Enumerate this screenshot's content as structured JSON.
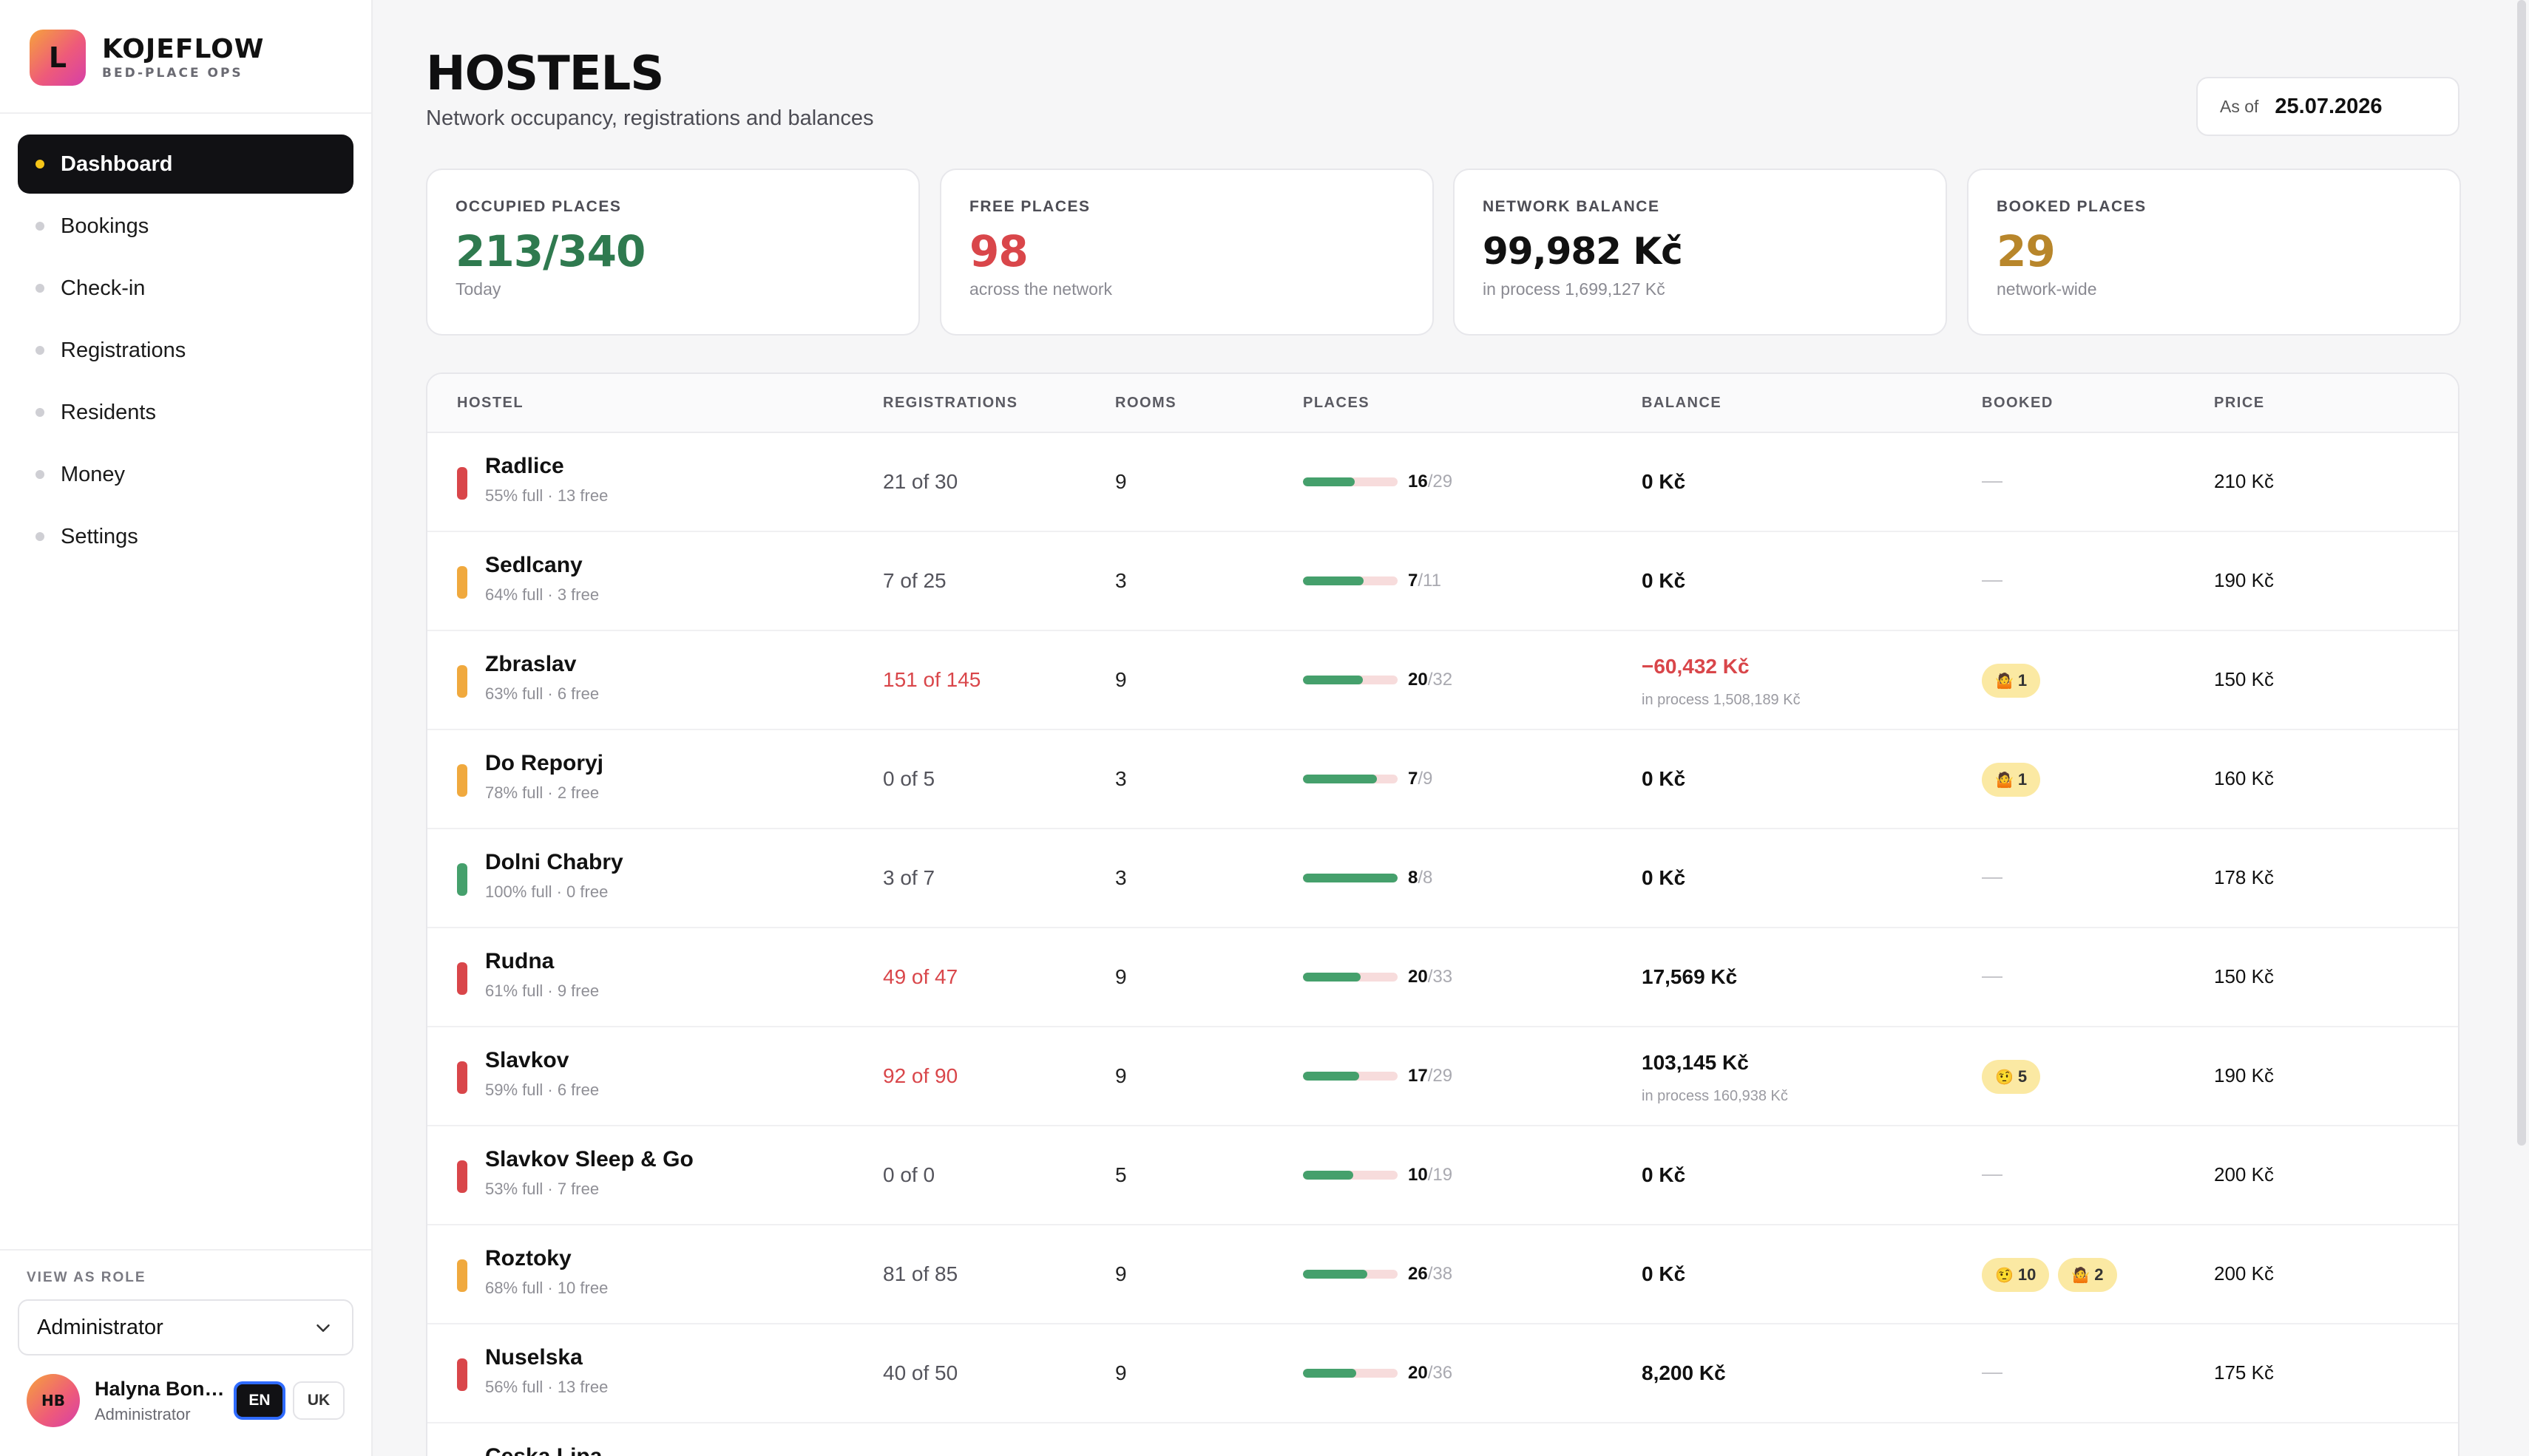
{
  "brand": {
    "logo_letter": "L",
    "name": "KOJEFLOW",
    "subtitle": "BED-PLACE OPS"
  },
  "nav": [
    {
      "label": "Dashboard",
      "active": true
    },
    {
      "label": "Bookings"
    },
    {
      "label": "Check-in"
    },
    {
      "label": "Registrations"
    },
    {
      "label": "Residents"
    },
    {
      "label": "Money"
    },
    {
      "label": "Settings"
    }
  ],
  "role": {
    "label": "VIEW AS ROLE",
    "value": "Administrator",
    "icon": "chevron-down-icon"
  },
  "user": {
    "initials": "HB",
    "name": "Halyna Bon…",
    "role": "Administrator",
    "languages": [
      "EN",
      "UK"
    ],
    "active_language": "EN"
  },
  "header": {
    "title": "HOSTELS",
    "subtitle": "Network occupancy, registrations and balances",
    "as_of_label": "As of",
    "as_of_value": "25.07.2026"
  },
  "stats": [
    {
      "label": "OCCUPIED PLACES",
      "value": "213/340",
      "sub": "Today",
      "color": "#2f7a4f"
    },
    {
      "label": "FREE PLACES",
      "value": "98",
      "sub": "across the network",
      "color": "#d9464a"
    },
    {
      "label": "NETWORK BALANCE",
      "value": "99,982 Kč",
      "sub": "in process 1,699,127 Kč",
      "color": "#111111"
    },
    {
      "label": "BOOKED PLACES",
      "value": "29",
      "sub": "network-wide",
      "color": "#b8862b"
    }
  ],
  "colors": {
    "status_red": "#d9464a",
    "status_orange": "#f0a93e",
    "status_green": "#45a06c",
    "bar_fill": "#45a06c",
    "bar_track": "#f7dcdc",
    "badge_bg": "#fbe9a3"
  },
  "table": {
    "headers": [
      "HOSTEL",
      "REGISTRATIONS",
      "ROOMS",
      "PLACES",
      "BALANCE",
      "BOOKED",
      "PRICE"
    ],
    "rows": [
      {
        "name": "Radlice",
        "sub": "55% full · 13 free",
        "status": "red",
        "registrations": "21 of 30",
        "reg_over": false,
        "rooms": "9",
        "occupied": "16",
        "total": "/29",
        "fill": 0.55,
        "balance": "0 Kč",
        "balance_neg": false,
        "balance_sub": "",
        "booked": [],
        "price": "210 Kč"
      },
      {
        "name": "Sedlcany",
        "sub": "64% full · 3 free",
        "status": "orange",
        "registrations": "7 of 25",
        "reg_over": false,
        "rooms": "3",
        "occupied": "7",
        "total": "/11",
        "fill": 0.64,
        "balance": "0 Kč",
        "balance_neg": false,
        "balance_sub": "",
        "booked": [],
        "price": "190 Kč"
      },
      {
        "name": "Zbraslav",
        "sub": "63% full · 6 free",
        "status": "orange",
        "registrations": "151 of 145",
        "reg_over": true,
        "rooms": "9",
        "occupied": "20",
        "total": "/32",
        "fill": 0.63,
        "balance": "−60,432 Kč",
        "balance_neg": true,
        "balance_sub": "in process 1,508,189 Kč",
        "booked": [
          {
            "emoji": "🤷",
            "count": "1"
          }
        ],
        "price": "150 Kč"
      },
      {
        "name": "Do Reporyj",
        "sub": "78% full · 2 free",
        "status": "orange",
        "registrations": "0 of 5",
        "reg_over": false,
        "rooms": "3",
        "occupied": "7",
        "total": "/9",
        "fill": 0.78,
        "balance": "0 Kč",
        "balance_neg": false,
        "balance_sub": "",
        "booked": [
          {
            "emoji": "🤷",
            "count": "1"
          }
        ],
        "price": "160 Kč"
      },
      {
        "name": "Dolni Chabry",
        "sub": "100% full · 0 free",
        "status": "green",
        "registrations": "3 of 7",
        "reg_over": false,
        "rooms": "3",
        "occupied": "8",
        "total": "/8",
        "fill": 1.0,
        "balance": "0 Kč",
        "balance_neg": false,
        "balance_sub": "",
        "booked": [],
        "price": "178 Kč"
      },
      {
        "name": "Rudna",
        "sub": "61% full · 9 free",
        "status": "red",
        "registrations": "49 of 47",
        "reg_over": true,
        "rooms": "9",
        "occupied": "20",
        "total": "/33",
        "fill": 0.61,
        "balance": "17,569 Kč",
        "balance_neg": false,
        "balance_sub": "",
        "booked": [],
        "price": "150 Kč"
      },
      {
        "name": "Slavkov",
        "sub": "59% full · 6 free",
        "status": "red",
        "registrations": "92 of 90",
        "reg_over": true,
        "rooms": "9",
        "occupied": "17",
        "total": "/29",
        "fill": 0.59,
        "balance": "103,145 Kč",
        "balance_neg": false,
        "balance_sub": "in process 160,938 Kč",
        "booked": [
          {
            "emoji": "🤨",
            "count": "5"
          }
        ],
        "price": "190 Kč"
      },
      {
        "name": "Slavkov Sleep & Go",
        "sub": "53% full · 7 free",
        "status": "red",
        "registrations": "0 of 0",
        "reg_over": false,
        "rooms": "5",
        "occupied": "10",
        "total": "/19",
        "fill": 0.53,
        "balance": "0 Kč",
        "balance_neg": false,
        "balance_sub": "",
        "booked": [],
        "price": "200 Kč"
      },
      {
        "name": "Roztoky",
        "sub": "68% full · 10 free",
        "status": "orange",
        "registrations": "81 of 85",
        "reg_over": false,
        "rooms": "9",
        "occupied": "26",
        "total": "/38",
        "fill": 0.68,
        "balance": "0 Kč",
        "balance_neg": false,
        "balance_sub": "",
        "booked": [
          {
            "emoji": "🤨",
            "count": "10"
          },
          {
            "emoji": "🤷",
            "count": "2"
          }
        ],
        "price": "200 Kč"
      },
      {
        "name": "Nuselska",
        "sub": "56% full · 13 free",
        "status": "red",
        "registrations": "40 of 50",
        "reg_over": false,
        "rooms": "9",
        "occupied": "20",
        "total": "/36",
        "fill": 0.56,
        "balance": "8,200 Kč",
        "balance_neg": false,
        "balance_sub": "",
        "booked": [],
        "price": "175 Kč"
      },
      {
        "name": "Ceska Lipa",
        "sub": "",
        "status": "red",
        "registrations": "",
        "reg_over": false,
        "rooms": "",
        "occupied": "",
        "total": "",
        "fill": 0,
        "balance": "",
        "balance_neg": false,
        "balance_sub": "",
        "booked": [],
        "price": ""
      }
    ]
  }
}
